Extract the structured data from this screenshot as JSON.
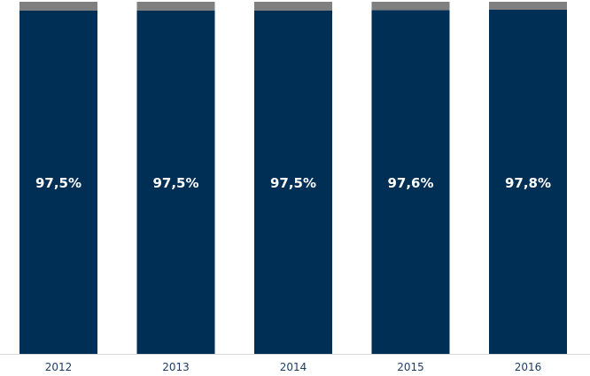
{
  "chart_data": {
    "type": "bar",
    "stacked": true,
    "categories": [
      "2012",
      "2013",
      "2014",
      "2015",
      "2016"
    ],
    "series": [
      {
        "values": [
          97.5,
          97.5,
          97.5,
          97.6,
          97.8
        ],
        "labels": [
          "97,5%",
          "97,5%",
          "97,5%",
          "97,6%",
          "97,8%"
        ],
        "color": "#002f56"
      },
      {
        "values": [
          2.5,
          2.5,
          2.5,
          2.4,
          2.2
        ],
        "color": "#7f7f7f"
      }
    ],
    "ylim": [
      0,
      100
    ],
    "grid": false,
    "legend": "none",
    "axis_color": "#d9d9d9",
    "tick_color": "#1f3c66"
  }
}
